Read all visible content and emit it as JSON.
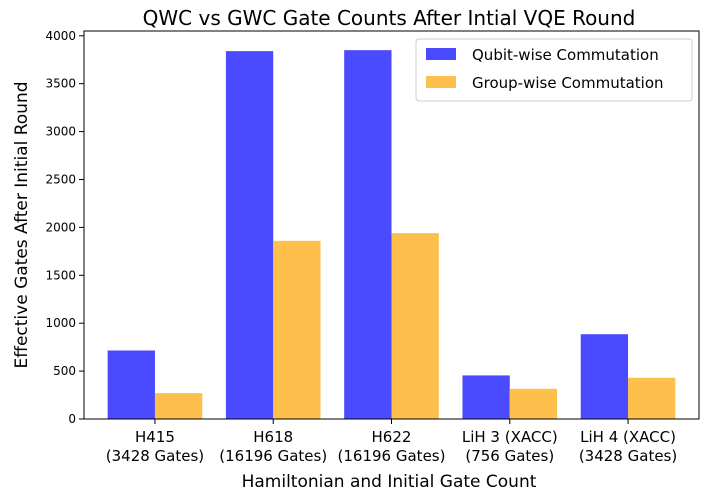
{
  "chart_data": {
    "type": "bar",
    "title": "QWC vs GWC Gate Counts After Intial VQE Round",
    "xlabel": "Hamiltonian and Initial Gate Count",
    "ylabel": "Effective Gates After Initial Round",
    "categories": [
      [
        "H415",
        "(3428 Gates)"
      ],
      [
        "H618",
        "(16196 Gates)"
      ],
      [
        "H622",
        "(16196 Gates)"
      ],
      [
        "LiH 3 (XACC)",
        "(756 Gates)"
      ],
      [
        "LiH 4 (XACC)",
        "(3428 Gates)"
      ]
    ],
    "series": [
      {
        "name": "Qubit-wise Commutation",
        "color": "#4a4aff",
        "values": [
          715,
          3840,
          3850,
          455,
          885
        ]
      },
      {
        "name": "Group-wise Commutation",
        "color": "#ffbf4d",
        "values": [
          270,
          1860,
          1940,
          315,
          430
        ]
      }
    ],
    "ylim": [
      0,
      4050
    ],
    "yticks": [
      0,
      500,
      1000,
      1500,
      2000,
      2500,
      3000,
      3500,
      4000
    ],
    "grid": false,
    "legend": "top-right"
  }
}
